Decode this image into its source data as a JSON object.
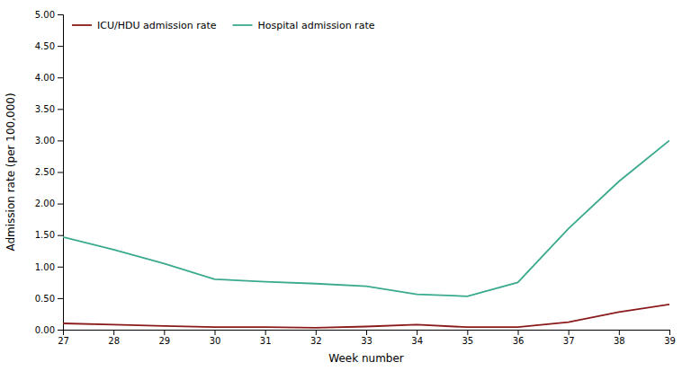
{
  "chart_data": {
    "type": "line",
    "xlabel": "Week number",
    "ylabel": "Admission rate (per 100,000)",
    "x": [
      27,
      28,
      29,
      30,
      31,
      32,
      33,
      34,
      35,
      36,
      37,
      38,
      39
    ],
    "xlim": [
      27,
      39
    ],
    "xticks": [
      27,
      28,
      29,
      30,
      31,
      32,
      33,
      34,
      35,
      36,
      37,
      38,
      39
    ],
    "ylim": [
      0.0,
      5.0
    ],
    "yticks": [
      {
        "value": 0.0,
        "label": "0.00"
      },
      {
        "value": 0.5,
        "label": "0.50"
      },
      {
        "value": 1.0,
        "label": "1.00"
      },
      {
        "value": 1.5,
        "label": "1.50"
      },
      {
        "value": 2.0,
        "label": "2.00"
      },
      {
        "value": 2.5,
        "label": "2.50"
      },
      {
        "value": 3.0,
        "label": "3.00"
      },
      {
        "value": 3.5,
        "label": "3.50"
      },
      {
        "value": 4.0,
        "label": "4.00"
      },
      {
        "value": 4.5,
        "label": "4.50"
      },
      {
        "value": 5.0,
        "label": "5.00"
      }
    ],
    "series": [
      {
        "name": "ICU/HDU admission rate",
        "color": "#8b1a1a",
        "values": [
          0.1,
          0.08,
          0.06,
          0.04,
          0.04,
          0.03,
          0.05,
          0.08,
          0.04,
          0.04,
          0.12,
          0.28,
          0.4
        ]
      },
      {
        "name": "Hospital admission rate",
        "color": "#3aaa8e",
        "values": [
          1.47,
          1.27,
          1.05,
          0.8,
          0.76,
          0.73,
          0.69,
          0.56,
          0.53,
          0.75,
          1.6,
          2.35,
          3.0
        ]
      }
    ],
    "grid": false,
    "legend": "upper left"
  }
}
